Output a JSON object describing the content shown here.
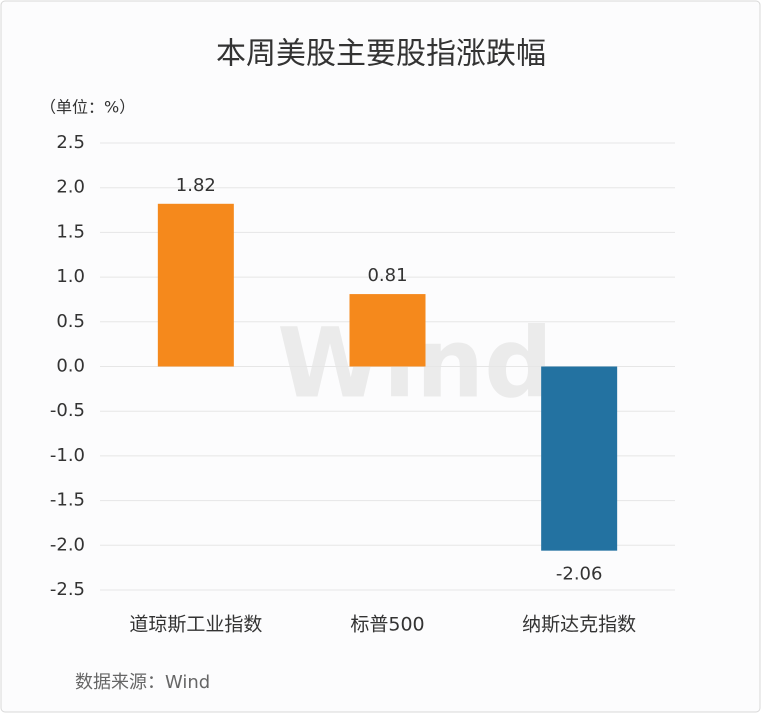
{
  "chart_data": {
    "type": "bar",
    "title": "本周美股主要股指涨跌幅",
    "unit_label": "（单位：%）",
    "source": "数据来源：Wind",
    "watermark": "Wind",
    "categories": [
      "道琼斯工业指数",
      "标普500",
      "纳斯达克指数"
    ],
    "values": [
      1.82,
      0.81,
      -2.06
    ],
    "colors": [
      "#f5891c",
      "#f5891c",
      "#2372a1"
    ],
    "ylim": [
      -2.5,
      2.5
    ],
    "yticks": [
      2.5,
      {
        "value": 2,
        "label": "2.0"
      },
      1.5,
      {
        "value": 1,
        "label": "1.0"
      },
      0.5,
      {
        "value": 0,
        "label": "0.0"
      },
      -0.5,
      {
        "value": -1,
        "label": "-1.0"
      },
      -1.5,
      {
        "value": -2,
        "label": "-2.0"
      },
      -2.5
    ],
    "grid": true
  }
}
